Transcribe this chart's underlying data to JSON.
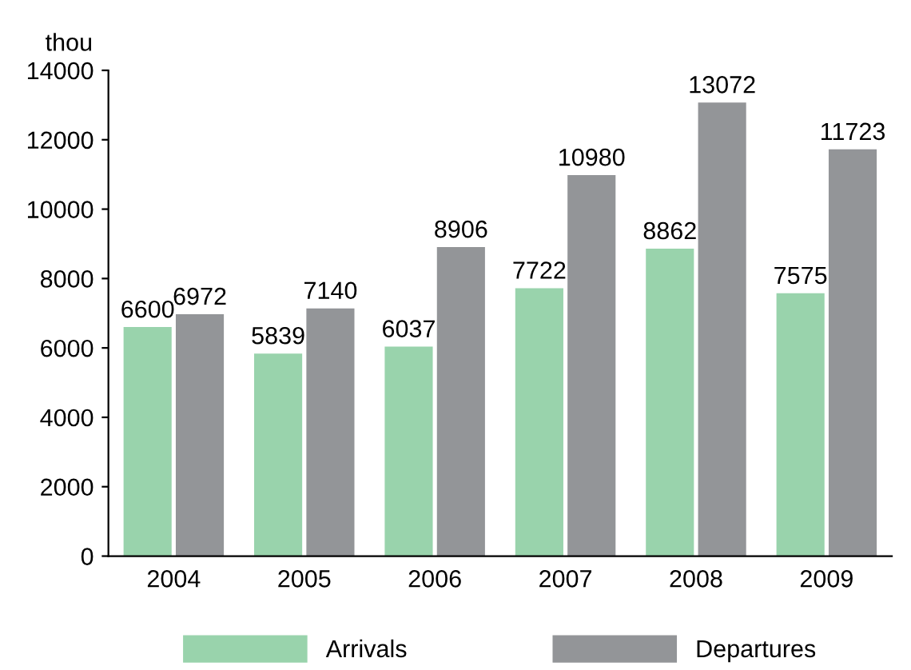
{
  "chart_data": {
    "type": "bar",
    "ylabel": "thou",
    "categories": [
      "2004",
      "2005",
      "2006",
      "2007",
      "2008",
      "2009"
    ],
    "series": [
      {
        "name": "Arrivals",
        "color": "#99d3ac",
        "values": [
          6600,
          5839,
          6037,
          7722,
          8862,
          7575
        ]
      },
      {
        "name": "Departures",
        "color": "#939598",
        "values": [
          6972,
          7140,
          8906,
          10980,
          13072,
          11723
        ]
      }
    ],
    "ylim": [
      0,
      14000
    ],
    "yticks": [
      0,
      2000,
      4000,
      6000,
      8000,
      10000,
      12000,
      14000
    ],
    "grid": false,
    "legend": "bottom",
    "data_labels": true
  }
}
